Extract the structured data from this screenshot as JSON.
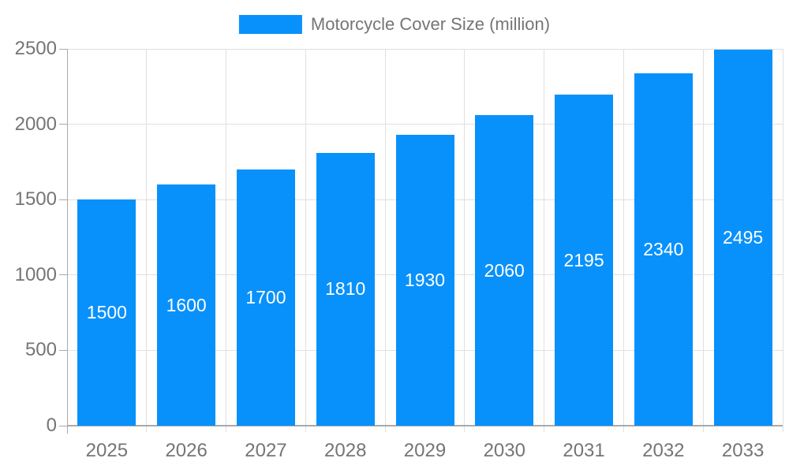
{
  "legend": {
    "label": "Motorcycle Cover Size (million)"
  },
  "chart_data": {
    "type": "bar",
    "title": "",
    "xlabel": "",
    "ylabel": "",
    "categories": [
      "2025",
      "2026",
      "2027",
      "2028",
      "2029",
      "2030",
      "2031",
      "2032",
      "2033"
    ],
    "series": [
      {
        "name": "Motorcycle Cover Size (million)",
        "values": [
          1500,
          1600,
          1700,
          1810,
          1930,
          2060,
          2195,
          2340,
          2495
        ]
      }
    ],
    "value_labels_shown": true,
    "value_label_position": "center-inside-bar",
    "ylim": [
      0,
      2500
    ],
    "y_ticks": [
      0,
      500,
      1000,
      1500,
      2000,
      2500
    ],
    "grid": true,
    "legend_position": "top-center"
  },
  "colors": {
    "bar": "#0991fb",
    "value_label": "#ffffff",
    "axis_text": "#757575",
    "grid_line": "#e0e0e0",
    "axis_line": "#aaaaaa",
    "background": "#ffffff"
  }
}
